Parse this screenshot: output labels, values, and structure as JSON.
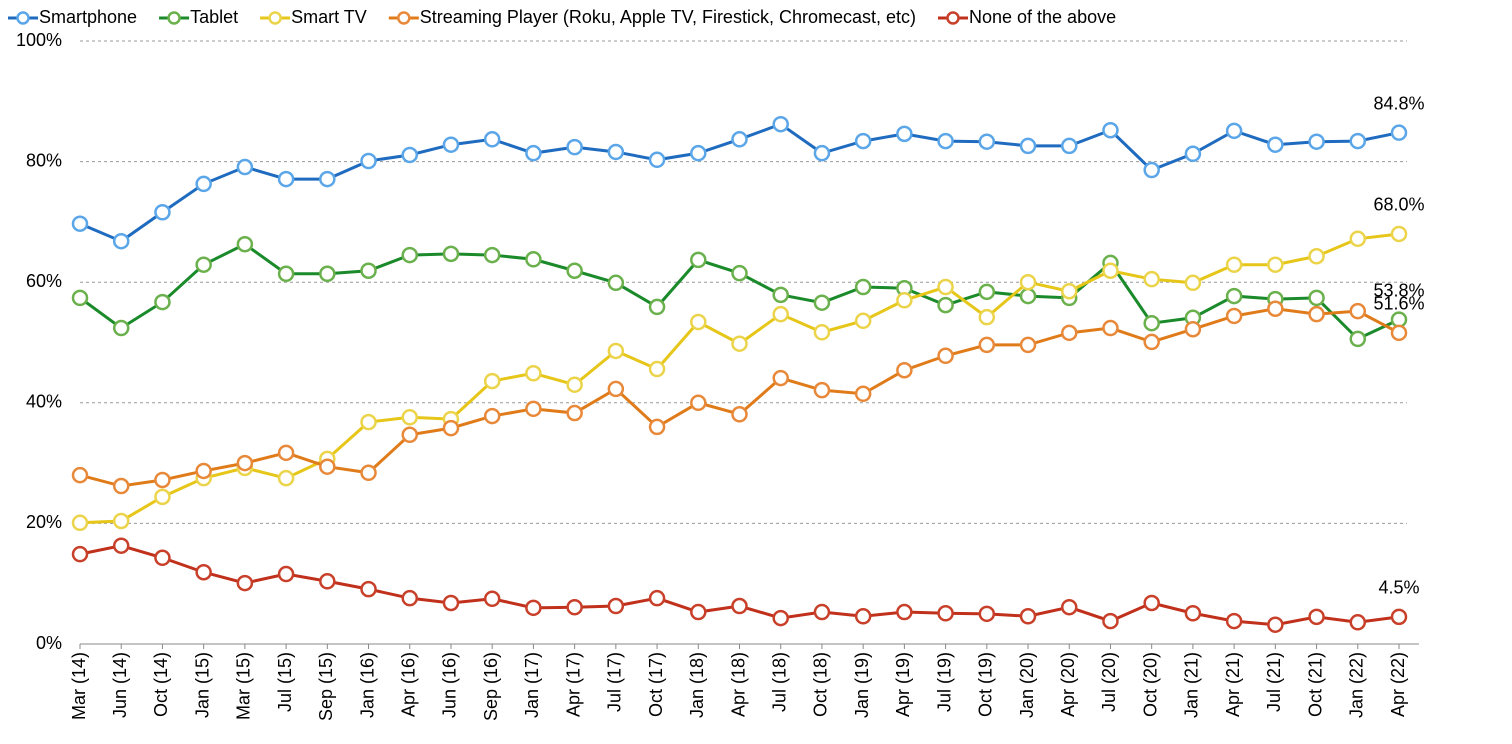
{
  "chart_data": {
    "type": "line",
    "categories": [
      "Mar (14)",
      "Jun (14)",
      "Oct (14)",
      "Jan (15)",
      "Mar (15)",
      "Jul (15)",
      "Sep (15)",
      "Jan (16)",
      "Apr (16)",
      "Jun (16)",
      "Sep (16)",
      "Jan (17)",
      "Apr (17)",
      "Jul (17)",
      "Oct (17)",
      "Jan (18)",
      "Apr (18)",
      "Jul (18)",
      "Oct (18)",
      "Jan (19)",
      "Apr (19)",
      "Jul (19)",
      "Oct (19)",
      "Jan (20)",
      "Apr (20)",
      "Jul (20)",
      "Oct (20)",
      "Jan (21)",
      "Apr (21)",
      "Jul (21)",
      "Oct (21)",
      "Jan (22)",
      "Apr (22)"
    ],
    "series": [
      {
        "name": "Smartphone",
        "color": "#1f6bbf",
        "marker_color": "#5aa6e8",
        "values": [
          69.7,
          66.8,
          71.6,
          76.3,
          79.1,
          77.1,
          77.1,
          80.1,
          81.1,
          82.8,
          83.7,
          81.4,
          82.4,
          81.6,
          80.3,
          81.4,
          83.7,
          86.2,
          81.4,
          83.4,
          84.6,
          83.4,
          83.3,
          82.6,
          82.6,
          85.2,
          78.6,
          81.3,
          85.1,
          82.8,
          83.3,
          83.4,
          84.8
        ],
        "value_labels": [
          null,
          null,
          null,
          null,
          null,
          null,
          null,
          null,
          null,
          null,
          null,
          null,
          null,
          null,
          null,
          null,
          null,
          null,
          null,
          null,
          null,
          null,
          null,
          null,
          null,
          null,
          null,
          null,
          null,
          null,
          null,
          null,
          "84.8%"
        ]
      },
      {
        "name": "Tablet",
        "color": "#1a8a2a",
        "marker_color": "#6ab04c",
        "values": [
          57.4,
          52.4,
          56.7,
          62.9,
          66.3,
          61.4,
          61.4,
          61.9,
          64.5,
          64.7,
          64.5,
          63.8,
          61.9,
          59.9,
          55.9,
          63.7,
          61.5,
          57.9,
          56.6,
          59.2,
          59.0,
          56.2,
          58.4,
          57.7,
          57.4,
          63.2,
          53.2,
          54.1,
          57.7,
          57.2,
          57.4,
          50.6,
          53.8
        ],
        "value_labels": [
          null,
          null,
          null,
          null,
          null,
          null,
          null,
          null,
          null,
          null,
          null,
          null,
          null,
          null,
          null,
          null,
          null,
          null,
          null,
          null,
          null,
          null,
          null,
          null,
          null,
          null,
          null,
          null,
          null,
          null,
          null,
          null,
          "53.8%"
        ]
      },
      {
        "name": "Smart TV",
        "color": "#e6c619",
        "marker_color": "#ecd44a",
        "values": [
          20.1,
          20.4,
          24.4,
          27.5,
          29.2,
          27.5,
          30.7,
          36.8,
          37.6,
          37.3,
          43.6,
          44.9,
          43.0,
          48.6,
          45.6,
          53.4,
          49.8,
          54.7,
          51.7,
          53.6,
          57.0,
          59.2,
          54.2,
          60.0,
          58.5,
          61.9,
          60.5,
          59.9,
          62.9,
          62.9,
          64.3,
          67.2,
          68.0
        ],
        "value_labels": [
          null,
          null,
          null,
          null,
          null,
          null,
          null,
          null,
          null,
          null,
          null,
          null,
          null,
          null,
          null,
          null,
          null,
          null,
          null,
          null,
          null,
          null,
          null,
          null,
          null,
          null,
          null,
          null,
          null,
          null,
          null,
          null,
          "68.0%"
        ]
      },
      {
        "name": "Streaming Player (Roku, Apple TV, Firestick, Chromecast, etc)",
        "color": "#e07b1a",
        "marker_color": "#e8893a",
        "values": [
          28.0,
          26.2,
          27.2,
          28.7,
          30.0,
          31.7,
          29.4,
          28.4,
          34.7,
          35.8,
          37.8,
          39.0,
          38.3,
          42.3,
          36.0,
          40.0,
          38.1,
          44.1,
          42.1,
          41.5,
          45.4,
          47.8,
          49.6,
          49.6,
          51.6,
          52.4,
          50.1,
          52.2,
          54.4,
          55.6,
          54.7,
          55.2,
          51.6
        ],
        "value_labels": [
          null,
          null,
          null,
          null,
          null,
          null,
          null,
          null,
          null,
          null,
          null,
          null,
          null,
          null,
          null,
          null,
          null,
          null,
          null,
          null,
          null,
          null,
          null,
          null,
          null,
          null,
          null,
          null,
          null,
          null,
          null,
          null,
          "51.6%"
        ]
      },
      {
        "name": "None of the above",
        "color": "#c0301b",
        "marker_color": "#c8402a",
        "values": [
          14.9,
          16.3,
          14.3,
          11.9,
          10.1,
          11.6,
          10.4,
          9.1,
          7.6,
          6.8,
          7.5,
          6.0,
          6.1,
          6.3,
          7.6,
          5.3,
          6.3,
          4.3,
          5.3,
          4.6,
          5.3,
          5.1,
          5.0,
          4.6,
          6.1,
          3.8,
          6.8,
          5.1,
          3.8,
          3.2,
          4.5,
          3.6,
          4.5
        ],
        "value_labels": [
          null,
          null,
          null,
          null,
          null,
          null,
          null,
          null,
          null,
          null,
          null,
          null,
          null,
          null,
          null,
          null,
          null,
          null,
          null,
          null,
          null,
          null,
          null,
          null,
          null,
          null,
          null,
          null,
          null,
          null,
          null,
          null,
          "4.5%"
        ]
      }
    ],
    "ylim": [
      0,
      100
    ],
    "yticks": [
      {
        "value": 0,
        "label": "0%"
      },
      {
        "value": 20,
        "label": "20%"
      },
      {
        "value": 40,
        "label": "40%"
      },
      {
        "value": 60,
        "label": "60%"
      },
      {
        "value": 80,
        "label": "80%"
      },
      {
        "value": 100,
        "label": "100%"
      }
    ],
    "grid": true,
    "legend": "top"
  }
}
